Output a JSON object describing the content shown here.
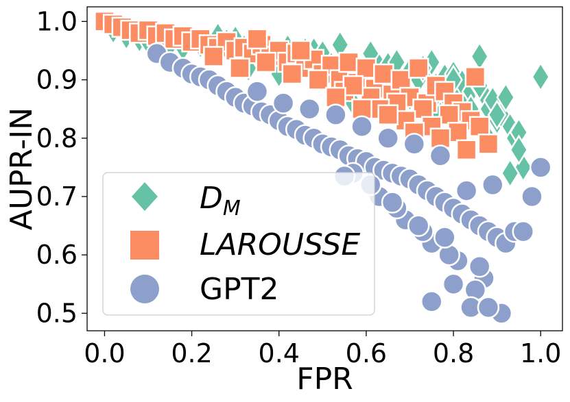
{
  "chart_data": {
    "type": "scatter",
    "xlabel": "FPR",
    "ylabel": "AUPR-IN",
    "xlim": [
      -0.04,
      1.05
    ],
    "ylim": [
      0.47,
      1.025
    ],
    "xticks": [
      "0.0",
      "0.2",
      "0.4",
      "0.6",
      "0.8",
      "1.0"
    ],
    "yticks": [
      "0.5",
      "0.6",
      "0.7",
      "0.8",
      "0.9",
      "1.0"
    ],
    "grid": false,
    "legend_position": "lower-left",
    "series": [
      {
        "name": "D_M",
        "label_main": "D",
        "label_sub": "M",
        "marker": "diamond",
        "color": "#66c2a5",
        "x": [
          0.02,
          0.05,
          0.08,
          0.1,
          0.15,
          0.18,
          0.22,
          0.24,
          0.26,
          0.28,
          0.3,
          0.32,
          0.34,
          0.36,
          0.38,
          0.4,
          0.42,
          0.44,
          0.46,
          0.48,
          0.5,
          0.52,
          0.55,
          0.58,
          0.6,
          0.62,
          0.63,
          0.65,
          0.66,
          0.68,
          0.7,
          0.72,
          0.74,
          0.75,
          0.76,
          0.78,
          0.79,
          0.8,
          0.81,
          0.82,
          0.83,
          0.84,
          0.85,
          0.86,
          0.87,
          0.88,
          0.89,
          0.9,
          0.91,
          0.92,
          0.93,
          0.94,
          0.95,
          0.96,
          0.44,
          0.5,
          0.56,
          0.64,
          0.7,
          0.76,
          0.84,
          0.9,
          0.95,
          1.0,
          0.36,
          0.46,
          0.54,
          0.61,
          0.67,
          0.73,
          0.8,
          0.86,
          0.93,
          0.33,
          0.4,
          0.57,
          0.77,
          0.82,
          0.88
        ],
        "y": [
          0.985,
          0.975,
          0.97,
          0.965,
          0.96,
          0.955,
          0.96,
          0.95,
          0.975,
          0.965,
          0.97,
          0.955,
          0.96,
          0.95,
          0.94,
          0.935,
          0.955,
          0.94,
          0.93,
          0.95,
          0.945,
          0.925,
          0.93,
          0.92,
          0.91,
          0.935,
          0.9,
          0.925,
          0.905,
          0.895,
          0.915,
          0.9,
          0.92,
          0.93,
          0.89,
          0.905,
          0.88,
          0.91,
          0.87,
          0.895,
          0.86,
          0.88,
          0.9,
          0.94,
          0.875,
          0.85,
          0.865,
          0.83,
          0.84,
          0.87,
          0.82,
          0.8,
          0.81,
          0.75,
          0.92,
          0.91,
          0.9,
          0.885,
          0.87,
          0.86,
          0.85,
          0.84,
          0.78,
          0.905,
          0.94,
          0.95,
          0.96,
          0.945,
          0.93,
          0.92,
          0.9,
          0.89,
          0.74,
          0.92,
          0.91,
          0.86,
          0.84,
          0.82,
          0.8
        ]
      },
      {
        "name": "LAROUSSE",
        "marker": "square",
        "color": "#fc8d62",
        "x": [
          0.0,
          0.02,
          0.04,
          0.06,
          0.08,
          0.1,
          0.12,
          0.14,
          0.16,
          0.18,
          0.2,
          0.22,
          0.24,
          0.26,
          0.28,
          0.3,
          0.32,
          0.34,
          0.36,
          0.38,
          0.4,
          0.42,
          0.44,
          0.46,
          0.48,
          0.5,
          0.52,
          0.54,
          0.56,
          0.58,
          0.6,
          0.62,
          0.64,
          0.66,
          0.68,
          0.7,
          0.72,
          0.74,
          0.76,
          0.78,
          0.8,
          0.82,
          0.84,
          0.86,
          0.25,
          0.31,
          0.37,
          0.43,
          0.49,
          0.55,
          0.61,
          0.67,
          0.73,
          0.79,
          0.85,
          0.35,
          0.45,
          0.57,
          0.63,
          0.69,
          0.75,
          0.81,
          0.88,
          0.53,
          0.59,
          0.65,
          0.71,
          0.77,
          0.83
        ],
        "y": [
          1.0,
          0.995,
          0.99,
          0.985,
          0.98,
          0.985,
          0.975,
          0.98,
          0.97,
          0.975,
          0.965,
          0.97,
          0.96,
          0.955,
          0.965,
          0.95,
          0.955,
          0.945,
          0.96,
          0.94,
          0.95,
          0.93,
          0.945,
          0.92,
          0.935,
          0.91,
          0.925,
          0.9,
          0.93,
          0.895,
          0.92,
          0.885,
          0.91,
          0.875,
          0.9,
          0.87,
          0.92,
          0.86,
          0.89,
          0.88,
          0.86,
          0.845,
          0.83,
          0.82,
          0.94,
          0.92,
          0.93,
          0.91,
          0.9,
          0.88,
          0.87,
          0.86,
          0.85,
          0.84,
          0.905,
          0.97,
          0.95,
          0.89,
          0.85,
          0.83,
          0.82,
          0.81,
          0.79,
          0.87,
          0.85,
          0.84,
          0.81,
          0.8,
          0.78
        ]
      },
      {
        "name": "GPT2",
        "marker": "circle",
        "color": "#8da0cb",
        "x": [
          0.12,
          0.15,
          0.18,
          0.2,
          0.22,
          0.24,
          0.26,
          0.28,
          0.3,
          0.32,
          0.34,
          0.36,
          0.38,
          0.4,
          0.42,
          0.44,
          0.46,
          0.48,
          0.5,
          0.52,
          0.54,
          0.56,
          0.58,
          0.6,
          0.62,
          0.64,
          0.66,
          0.68,
          0.7,
          0.72,
          0.74,
          0.76,
          0.78,
          0.8,
          0.82,
          0.84,
          0.86,
          0.88,
          0.9,
          0.92,
          0.94,
          0.96,
          0.98,
          1.0,
          0.35,
          0.41,
          0.47,
          0.53,
          0.59,
          0.65,
          0.71,
          0.77,
          0.83,
          0.89,
          0.63,
          0.69,
          0.75,
          0.81,
          0.87,
          0.91,
          0.57,
          0.61,
          0.67,
          0.73,
          0.79,
          0.85,
          0.75,
          0.8,
          0.84,
          0.88,
          0.55,
          0.66,
          0.72,
          0.78,
          0.86
        ],
        "y": [
          0.945,
          0.93,
          0.92,
          0.91,
          0.905,
          0.9,
          0.89,
          0.88,
          0.87,
          0.86,
          0.855,
          0.845,
          0.84,
          0.83,
          0.82,
          0.815,
          0.805,
          0.8,
          0.79,
          0.785,
          0.78,
          0.77,
          0.765,
          0.76,
          0.75,
          0.745,
          0.74,
          0.735,
          0.73,
          0.72,
          0.71,
          0.7,
          0.69,
          0.68,
          0.67,
          0.66,
          0.65,
          0.64,
          0.63,
          0.62,
          0.64,
          0.64,
          0.7,
          0.75,
          0.88,
          0.86,
          0.85,
          0.84,
          0.82,
          0.8,
          0.79,
          0.77,
          0.71,
          0.72,
          0.7,
          0.66,
          0.62,
          0.59,
          0.56,
          0.5,
          0.74,
          0.72,
          0.68,
          0.64,
          0.6,
          0.54,
          0.52,
          0.55,
          0.51,
          0.51,
          0.735,
          0.69,
          0.65,
          0.63,
          0.58
        ]
      }
    ]
  }
}
